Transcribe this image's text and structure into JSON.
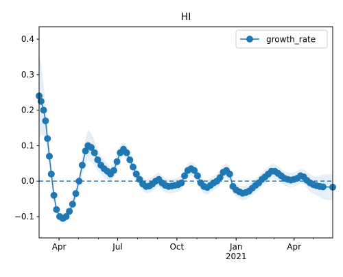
{
  "chart_data": {
    "type": "line",
    "title": "HI",
    "xlabel": "",
    "ylabel": "",
    "x_start": "2020-03-01",
    "x_end": "2021-05-31",
    "xlim": [
      "2020-03-01",
      "2021-05-31"
    ],
    "ylim": [
      -0.16,
      0.435
    ],
    "y_ticks": [
      -0.1,
      0.0,
      0.1,
      0.2,
      0.3,
      0.4
    ],
    "y_tick_labels": [
      "−0.1",
      "0.0",
      "0.1",
      "0.2",
      "0.3",
      "0.4"
    ],
    "x_ticks": [
      {
        "date": "2020-04-01",
        "label": "Apr",
        "sub": ""
      },
      {
        "date": "2020-07-01",
        "label": "Jul",
        "sub": ""
      },
      {
        "date": "2020-10-01",
        "label": "Oct",
        "sub": ""
      },
      {
        "date": "2021-01-01",
        "label": "Jan",
        "sub": "2021"
      },
      {
        "date": "2021-04-01",
        "label": "Apr",
        "sub": ""
      }
    ],
    "reference_line": {
      "y": 0.0,
      "style": "dashed"
    },
    "grid": false,
    "legend": {
      "position": "top-right",
      "entries": [
        "growth_rate"
      ]
    },
    "series": [
      {
        "name": "growth_rate",
        "marker": "circle",
        "color": "#1f77b4",
        "band_color": "#dbe9f6",
        "points": [
          {
            "x": "2020-03-01",
            "y": 0.24,
            "lo": 0.12,
            "hi": 0.36
          },
          {
            "x": "2020-03-04",
            "y": 0.225,
            "lo": 0.13,
            "hi": 0.33
          },
          {
            "x": "2020-03-08",
            "y": 0.2,
            "lo": 0.13,
            "hi": 0.27
          },
          {
            "x": "2020-03-11",
            "y": 0.17,
            "lo": 0.12,
            "hi": 0.22
          },
          {
            "x": "2020-03-14",
            "y": 0.12,
            "lo": 0.08,
            "hi": 0.16
          },
          {
            "x": "2020-03-17",
            "y": 0.07,
            "lo": 0.04,
            "hi": 0.1
          },
          {
            "x": "2020-03-20",
            "y": 0.02,
            "lo": -0.01,
            "hi": 0.05
          },
          {
            "x": "2020-03-24",
            "y": -0.04,
            "lo": -0.06,
            "hi": -0.02
          },
          {
            "x": "2020-03-28",
            "y": -0.08,
            "lo": -0.095,
            "hi": -0.065
          },
          {
            "x": "2020-04-02",
            "y": -0.1,
            "lo": -0.115,
            "hi": -0.085
          },
          {
            "x": "2020-04-07",
            "y": -0.105,
            "lo": -0.12,
            "hi": -0.09
          },
          {
            "x": "2020-04-12",
            "y": -0.1,
            "lo": -0.115,
            "hi": -0.085
          },
          {
            "x": "2020-04-17",
            "y": -0.085,
            "lo": -0.1,
            "hi": -0.07
          },
          {
            "x": "2020-04-22",
            "y": -0.065,
            "lo": -0.08,
            "hi": -0.05
          },
          {
            "x": "2020-04-27",
            "y": -0.035,
            "lo": -0.055,
            "hi": -0.015
          },
          {
            "x": "2020-05-02",
            "y": 0.0,
            "lo": -0.025,
            "hi": 0.025
          },
          {
            "x": "2020-05-07",
            "y": 0.045,
            "lo": 0.015,
            "hi": 0.075
          },
          {
            "x": "2020-05-12",
            "y": 0.085,
            "lo": 0.05,
            "hi": 0.12
          },
          {
            "x": "2020-05-16",
            "y": 0.1,
            "lo": 0.06,
            "hi": 0.145
          },
          {
            "x": "2020-05-21",
            "y": 0.095,
            "lo": 0.055,
            "hi": 0.135
          },
          {
            "x": "2020-05-26",
            "y": 0.08,
            "lo": 0.045,
            "hi": 0.115
          },
          {
            "x": "2020-05-31",
            "y": 0.06,
            "lo": 0.03,
            "hi": 0.09
          },
          {
            "x": "2020-06-05",
            "y": 0.045,
            "lo": 0.02,
            "hi": 0.07
          },
          {
            "x": "2020-06-10",
            "y": 0.035,
            "lo": 0.01,
            "hi": 0.06
          },
          {
            "x": "2020-06-15",
            "y": 0.028,
            "lo": 0.005,
            "hi": 0.05
          },
          {
            "x": "2020-06-20",
            "y": 0.02,
            "lo": 0.0,
            "hi": 0.04
          },
          {
            "x": "2020-06-25",
            "y": 0.03,
            "lo": 0.01,
            "hi": 0.05
          },
          {
            "x": "2020-06-30",
            "y": 0.055,
            "lo": 0.035,
            "hi": 0.08
          },
          {
            "x": "2020-07-05",
            "y": 0.08,
            "lo": 0.06,
            "hi": 0.1
          },
          {
            "x": "2020-07-10",
            "y": 0.09,
            "lo": 0.07,
            "hi": 0.11
          },
          {
            "x": "2020-07-15",
            "y": 0.08,
            "lo": 0.06,
            "hi": 0.1
          },
          {
            "x": "2020-07-20",
            "y": 0.06,
            "lo": 0.04,
            "hi": 0.08
          },
          {
            "x": "2020-07-25",
            "y": 0.04,
            "lo": 0.02,
            "hi": 0.06
          },
          {
            "x": "2020-07-30",
            "y": 0.02,
            "lo": 0.0,
            "hi": 0.04
          },
          {
            "x": "2020-08-04",
            "y": 0.005,
            "lo": -0.015,
            "hi": 0.025
          },
          {
            "x": "2020-08-09",
            "y": -0.008,
            "lo": -0.028,
            "hi": 0.012
          },
          {
            "x": "2020-08-14",
            "y": -0.015,
            "lo": -0.035,
            "hi": 0.005
          },
          {
            "x": "2020-08-19",
            "y": -0.014,
            "lo": -0.034,
            "hi": 0.006
          },
          {
            "x": "2020-08-24",
            "y": -0.008,
            "lo": -0.028,
            "hi": 0.012
          },
          {
            "x": "2020-08-29",
            "y": 0.0,
            "lo": -0.02,
            "hi": 0.02
          },
          {
            "x": "2020-09-03",
            "y": 0.005,
            "lo": -0.015,
            "hi": 0.025
          },
          {
            "x": "2020-09-08",
            "y": -0.005,
            "lo": -0.025,
            "hi": 0.015
          },
          {
            "x": "2020-09-13",
            "y": -0.012,
            "lo": -0.032,
            "hi": 0.008
          },
          {
            "x": "2020-09-18",
            "y": -0.015,
            "lo": -0.035,
            "hi": 0.005
          },
          {
            "x": "2020-09-23",
            "y": -0.014,
            "lo": -0.034,
            "hi": 0.006
          },
          {
            "x": "2020-09-28",
            "y": -0.012,
            "lo": -0.032,
            "hi": 0.008
          },
          {
            "x": "2020-10-03",
            "y": -0.01,
            "lo": -0.03,
            "hi": 0.01
          },
          {
            "x": "2020-10-08",
            "y": -0.005,
            "lo": -0.025,
            "hi": 0.015
          },
          {
            "x": "2020-10-13",
            "y": 0.015,
            "lo": -0.005,
            "hi": 0.035
          },
          {
            "x": "2020-10-18",
            "y": 0.03,
            "lo": 0.01,
            "hi": 0.05
          },
          {
            "x": "2020-10-23",
            "y": 0.035,
            "lo": 0.015,
            "hi": 0.055
          },
          {
            "x": "2020-10-28",
            "y": 0.03,
            "lo": 0.01,
            "hi": 0.05
          },
          {
            "x": "2020-11-02",
            "y": 0.015,
            "lo": -0.005,
            "hi": 0.035
          },
          {
            "x": "2020-11-07",
            "y": -0.005,
            "lo": -0.025,
            "hi": 0.015
          },
          {
            "x": "2020-11-12",
            "y": -0.015,
            "lo": -0.035,
            "hi": 0.005
          },
          {
            "x": "2020-11-17",
            "y": -0.018,
            "lo": -0.038,
            "hi": 0.002
          },
          {
            "x": "2020-11-22",
            "y": -0.012,
            "lo": -0.032,
            "hi": 0.008
          },
          {
            "x": "2020-11-27",
            "y": -0.005,
            "lo": -0.025,
            "hi": 0.015
          },
          {
            "x": "2020-12-02",
            "y": 0.0,
            "lo": -0.02,
            "hi": 0.02
          },
          {
            "x": "2020-12-07",
            "y": 0.01,
            "lo": -0.01,
            "hi": 0.03
          },
          {
            "x": "2020-12-12",
            "y": 0.025,
            "lo": 0.005,
            "hi": 0.045
          },
          {
            "x": "2020-12-17",
            "y": 0.03,
            "lo": 0.01,
            "hi": 0.05
          },
          {
            "x": "2020-12-22",
            "y": 0.02,
            "lo": 0.0,
            "hi": 0.04
          },
          {
            "x": "2020-12-27",
            "y": -0.015,
            "lo": -0.035,
            "hi": 0.005
          },
          {
            "x": "2021-01-01",
            "y": -0.025,
            "lo": -0.045,
            "hi": -0.005
          },
          {
            "x": "2021-01-06",
            "y": -0.03,
            "lo": -0.05,
            "hi": -0.01
          },
          {
            "x": "2021-01-11",
            "y": -0.034,
            "lo": -0.054,
            "hi": -0.014
          },
          {
            "x": "2021-01-16",
            "y": -0.032,
            "lo": -0.052,
            "hi": -0.012
          },
          {
            "x": "2021-01-21",
            "y": -0.028,
            "lo": -0.048,
            "hi": -0.008
          },
          {
            "x": "2021-01-26",
            "y": -0.02,
            "lo": -0.04,
            "hi": 0.0
          },
          {
            "x": "2021-01-31",
            "y": -0.012,
            "lo": -0.032,
            "hi": 0.008
          },
          {
            "x": "2021-02-05",
            "y": -0.005,
            "lo": -0.025,
            "hi": 0.015
          },
          {
            "x": "2021-02-10",
            "y": 0.005,
            "lo": -0.015,
            "hi": 0.025
          },
          {
            "x": "2021-02-15",
            "y": 0.012,
            "lo": -0.008,
            "hi": 0.032
          },
          {
            "x": "2021-02-20",
            "y": 0.02,
            "lo": 0.0,
            "hi": 0.04
          },
          {
            "x": "2021-02-25",
            "y": 0.028,
            "lo": 0.008,
            "hi": 0.048
          },
          {
            "x": "2021-03-02",
            "y": 0.028,
            "lo": 0.008,
            "hi": 0.048
          },
          {
            "x": "2021-03-07",
            "y": 0.022,
            "lo": 0.002,
            "hi": 0.042
          },
          {
            "x": "2021-03-12",
            "y": 0.015,
            "lo": -0.005,
            "hi": 0.035
          },
          {
            "x": "2021-03-17",
            "y": 0.008,
            "lo": -0.012,
            "hi": 0.028
          },
          {
            "x": "2021-03-22",
            "y": 0.005,
            "lo": -0.015,
            "hi": 0.025
          },
          {
            "x": "2021-03-27",
            "y": 0.003,
            "lo": -0.017,
            "hi": 0.023
          },
          {
            "x": "2021-04-01",
            "y": 0.005,
            "lo": -0.015,
            "hi": 0.025
          },
          {
            "x": "2021-04-06",
            "y": 0.008,
            "lo": -0.012,
            "hi": 0.028
          },
          {
            "x": "2021-04-11",
            "y": 0.015,
            "lo": -0.005,
            "hi": 0.035
          },
          {
            "x": "2021-04-16",
            "y": 0.012,
            "lo": -0.008,
            "hi": 0.032
          },
          {
            "x": "2021-04-21",
            "y": 0.002,
            "lo": -0.02,
            "hi": 0.025
          },
          {
            "x": "2021-04-26",
            "y": -0.005,
            "lo": -0.03,
            "hi": 0.02
          },
          {
            "x": "2021-05-01",
            "y": -0.01,
            "lo": -0.035,
            "hi": 0.015
          },
          {
            "x": "2021-05-06",
            "y": -0.013,
            "lo": -0.04,
            "hi": 0.014
          },
          {
            "x": "2021-05-11",
            "y": -0.015,
            "lo": -0.045,
            "hi": 0.015
          },
          {
            "x": "2021-05-16",
            "y": -0.016,
            "lo": -0.05,
            "hi": 0.018
          },
          {
            "x": "2021-05-31",
            "y": -0.017,
            "lo": -0.055,
            "hi": 0.02
          }
        ]
      }
    ]
  }
}
